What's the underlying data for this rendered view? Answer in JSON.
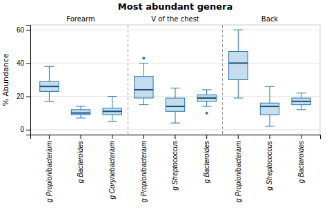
{
  "chart_data": {
    "type": "box",
    "title": "Most abundant genera",
    "ylabel": "% Abundance",
    "ylim": [
      -3,
      63
    ],
    "yticks": [
      0,
      20,
      40,
      60
    ],
    "grid": true,
    "groups": [
      "Forearm",
      "V of the chest",
      "Back"
    ],
    "categories": [
      "g Propionibacterium",
      "g Bacteroides",
      "g Corynebacterium",
      "g Propionibacterium",
      "g Streptococcus",
      "g Bacteroides",
      "g Propionibacterium",
      "g Streptococcus",
      "g Bacteroides"
    ],
    "boxes": [
      {
        "median": 26,
        "q1": 23,
        "q3": 29,
        "whislo": 17,
        "whishi": 38,
        "fliers": []
      },
      {
        "median": 10,
        "q1": 9,
        "q3": 12,
        "whislo": 7,
        "whishi": 14,
        "fliers": []
      },
      {
        "median": 11,
        "q1": 9,
        "q3": 13,
        "whislo": 5,
        "whishi": 20,
        "fliers": []
      },
      {
        "median": 24,
        "q1": 19,
        "q3": 32,
        "whislo": 15,
        "whishi": 40,
        "fliers": [
          43
        ]
      },
      {
        "median": 14,
        "q1": 11,
        "q3": 19,
        "whislo": 4,
        "whishi": 25,
        "fliers": []
      },
      {
        "median": 19,
        "q1": 17,
        "q3": 21,
        "whislo": 14,
        "whishi": 24,
        "fliers": [
          10
        ]
      },
      {
        "median": 40,
        "q1": 30,
        "q3": 47,
        "whislo": 19,
        "whishi": 60,
        "fliers": []
      },
      {
        "median": 14,
        "q1": 9,
        "q3": 16,
        "whislo": 2,
        "whishi": 26,
        "fliers": []
      },
      {
        "median": 17,
        "q1": 15,
        "q3": 19,
        "whislo": 12,
        "whishi": 22,
        "fliers": []
      }
    ]
  }
}
